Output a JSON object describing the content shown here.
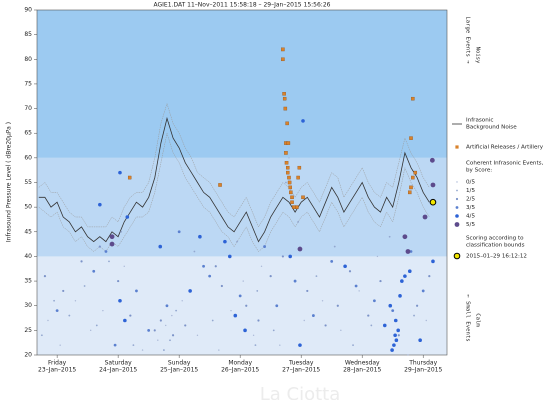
{
  "chart_data": {
    "type": "scatter",
    "title": "AGIE1.DAT   11–Nov–2011 15:58:18   –   29–Jan–2015 15:56:26",
    "ylabel": "Infrasound Pressure Level  ( dBre20µPa )",
    "watermark": "La Ciotta",
    "xlim": [
      0.17,
      6.89
    ],
    "ylim": [
      20,
      90
    ],
    "yticks": [
      20,
      25,
      30,
      35,
      40,
      45,
      50,
      55,
      60,
      65,
      70,
      75,
      80,
      85,
      90
    ],
    "xticks": [
      {
        "value": 0.5,
        "label": "Friday",
        "date": "23–Jan–2015"
      },
      {
        "value": 1.5,
        "label": "Saturday",
        "date": "24–Jan–2015"
      },
      {
        "value": 2.5,
        "label": "Sunday",
        "date": "25–Jan–2015"
      },
      {
        "value": 3.5,
        "label": "Monday",
        "date": "26–Jan–2015"
      },
      {
        "value": 4.5,
        "label": "Tuesday",
        "date": "27–Jan–2015"
      },
      {
        "value": 5.5,
        "label": "Wednesday",
        "date": "28–Jan–2015"
      },
      {
        "value": 6.5,
        "label": "Thursday",
        "date": "29–Jan–2015"
      }
    ],
    "bands": [
      {
        "from": 20,
        "to": 40,
        "color": "#dfeaf8"
      },
      {
        "from": 40,
        "to": 60,
        "color": "#bcd8f4"
      },
      {
        "from": 60,
        "to": 90,
        "color": "#9ccaf1"
      }
    ],
    "zones": {
      "top": [
        "Large Events →",
        "Noisy"
      ],
      "bottom": [
        "← Small Events",
        "Calm"
      ]
    },
    "noise": {
      "name": [
        "Infrasonic",
        "Background Noise"
      ],
      "color": "#333333",
      "envelope_color": "#9a9a9a",
      "x": [
        0.2,
        0.3,
        0.4,
        0.5,
        0.6,
        0.7,
        0.8,
        0.9,
        1.0,
        1.1,
        1.2,
        1.3,
        1.4,
        1.5,
        1.6,
        1.7,
        1.8,
        1.9,
        2.0,
        2.1,
        2.2,
        2.3,
        2.4,
        2.5,
        2.6,
        2.7,
        2.8,
        2.9,
        3.0,
        3.1,
        3.2,
        3.3,
        3.4,
        3.5,
        3.6,
        3.7,
        3.8,
        3.9,
        4.0,
        4.1,
        4.2,
        4.3,
        4.4,
        4.5,
        4.6,
        4.7,
        4.8,
        4.9,
        5.0,
        5.1,
        5.2,
        5.3,
        5.4,
        5.5,
        5.6,
        5.7,
        5.8,
        5.9,
        6.0,
        6.1,
        6.2,
        6.3,
        6.4,
        6.5,
        6.6
      ],
      "values": [
        52,
        52,
        50,
        51,
        48,
        47,
        45,
        46,
        44,
        43,
        44,
        43,
        45,
        44,
        47,
        49,
        51,
        50,
        52,
        56,
        63,
        68,
        64,
        62,
        59,
        57,
        55,
        53,
        52,
        50,
        48,
        46,
        45,
        47,
        49,
        46,
        43,
        45,
        48,
        50,
        52,
        51,
        49,
        51,
        52,
        50,
        48,
        51,
        54,
        52,
        49,
        51,
        53,
        55,
        52,
        50,
        49,
        52,
        50,
        55,
        61,
        58,
        56,
        53,
        51
      ],
      "upper": [
        54,
        55,
        53,
        53,
        51,
        49,
        48,
        48,
        46,
        46,
        46,
        46,
        48,
        47,
        50,
        52,
        53,
        53,
        55,
        60,
        67,
        71,
        67,
        65,
        62,
        60,
        57,
        56,
        55,
        53,
        51,
        49,
        48,
        50,
        52,
        49,
        46,
        48,
        51,
        53,
        55,
        54,
        52,
        54,
        55,
        53,
        51,
        54,
        57,
        56,
        52,
        54,
        56,
        58,
        55,
        53,
        52,
        55,
        54,
        59,
        64,
        61,
        59,
        56,
        54
      ],
      "lower": [
        50,
        49,
        48,
        49,
        46,
        45,
        43,
        44,
        42,
        41,
        42,
        41,
        43,
        42,
        44,
        46,
        48,
        48,
        49,
        53,
        59,
        65,
        61,
        59,
        56,
        54,
        52,
        50,
        49,
        47,
        45,
        44,
        42,
        44,
        46,
        43,
        41,
        42,
        45,
        47,
        49,
        48,
        46,
        48,
        49,
        47,
        45,
        48,
        51,
        49,
        46,
        48,
        50,
        52,
        49,
        47,
        46,
        49,
        47,
        52,
        58,
        55,
        53,
        50,
        48
      ]
    },
    "artillery": {
      "name": "Artificial Releases / Artillery",
      "color": "#d9822b",
      "x": [
        1.69,
        3.17,
        4.2,
        4.2,
        4.22,
        4.23,
        4.24,
        4.25,
        4.25,
        4.26,
        4.27,
        4.28,
        4.28,
        4.29,
        4.3,
        4.31,
        4.32,
        4.33,
        4.35,
        4.35,
        4.38,
        4.43,
        4.45,
        4.47,
        4.53,
        6.3,
        6.33,
        6.28,
        6.3,
        6.33,
        6.37
      ],
      "values": [
        56,
        54.5,
        82,
        80,
        73,
        72,
        70,
        63,
        61,
        59,
        67,
        58,
        57,
        63,
        56,
        55,
        54,
        53,
        52,
        51,
        50,
        50,
        56,
        58,
        52,
        64,
        72,
        53,
        54,
        56,
        57
      ]
    },
    "events_title": [
      "Coherent Infrasonic Events,",
      "by Score:"
    ],
    "series": [
      {
        "name": "0/5",
        "color": "#a9b7d6",
        "x": [
          0.35,
          0.55,
          0.8,
          1.05,
          1.25,
          1.6,
          1.9,
          2.15,
          2.28,
          2.38,
          2.55,
          2.8,
          3.15,
          3.35,
          3.55,
          3.72,
          3.85,
          4.15,
          4.3,
          4.55,
          4.85,
          5.15,
          5.45,
          5.75,
          6.25,
          6.55
        ],
        "values": [
          27,
          22,
          31,
          25,
          29,
          38,
          21,
          23,
          26,
          28,
          31,
          24,
          21,
          29,
          35,
          24,
          38,
          22,
          60,
          27,
          31,
          25,
          33,
          40,
          20,
          27
        ]
      },
      {
        "name": "1/5",
        "color": "#93a7cf",
        "x": [
          0.25,
          0.45,
          0.7,
          0.95,
          1.15,
          1.35,
          1.55,
          1.75,
          2.25,
          2.35,
          2.45,
          2.75,
          3.05,
          3.45,
          3.75,
          3.78,
          4.05,
          4.25,
          4.45,
          4.75,
          5.05,
          5.35,
          5.65,
          5.95,
          6.35
        ],
        "values": [
          24,
          31,
          28,
          34,
          26,
          39,
          45,
          22,
          21,
          23,
          29,
          41,
          27,
          43,
          22,
          33,
          25,
          55,
          47,
          36,
          42,
          22,
          26,
          44,
          28
        ]
      },
      {
        "name": "2/5",
        "color": "#7c93c8",
        "x": [
          0.3,
          0.6,
          0.9,
          1.2,
          1.5,
          1.7,
          2.1,
          2.2,
          2.4,
          2.6,
          3.1,
          3.2,
          3.6,
          3.8,
          4.0,
          4.2,
          4.6,
          4.9,
          5.1,
          5.3,
          5.6,
          5.8,
          6.1,
          6.4,
          6.6
        ],
        "values": [
          36,
          33,
          39,
          42,
          35,
          28,
          25,
          27,
          24,
          26,
          38,
          34,
          30,
          27,
          36,
          40,
          33,
          26,
          30,
          37,
          28,
          35,
          24,
          30,
          36
        ]
      },
      {
        "name": "3/5",
        "color": "#5b80cf",
        "x": [
          0.5,
          1.1,
          1.3,
          1.8,
          2.0,
          2.3,
          2.5,
          3.0,
          3.5,
          3.9,
          4.1,
          4.4,
          4.7,
          5.0,
          5.4,
          5.7,
          6.0,
          6.3,
          6.5,
          1.45,
          2.9
        ],
        "values": [
          29,
          37,
          41,
          33,
          25,
          30,
          45,
          36,
          32,
          42,
          30,
          35,
          28,
          39,
          34,
          31,
          29,
          41,
          33,
          22,
          38
        ]
      },
      {
        "name": "4/5",
        "color": "#2d63d6",
        "x": [
          1.2,
          1.53,
          1.65,
          1.53,
          1.61,
          2.19,
          2.68,
          2.84,
          3.25,
          3.33,
          3.58,
          3.42,
          4.53,
          4.32,
          4.48,
          5.22,
          5.87,
          5.99,
          6.02,
          6.06,
          6.04,
          6.09,
          6.05,
          5.96,
          6.12,
          6.15,
          6.2,
          6.28,
          6.66,
          6.45
        ],
        "values": [
          50.5,
          57,
          48,
          31,
          27,
          42,
          33,
          44,
          43,
          40,
          25,
          28,
          67.5,
          40,
          22,
          38,
          26,
          21,
          22,
          23,
          24,
          25,
          27,
          30,
          32,
          35,
          36,
          37,
          39,
          23
        ]
      },
      {
        "name": "5/5",
        "color": "#5d4b8c",
        "x": [
          1.4,
          1.4,
          4.48,
          6.65,
          6.66,
          6.53,
          6.2,
          6.25
        ],
        "values": [
          44,
          42.5,
          41.5,
          59.5,
          54.5,
          48,
          44,
          41
        ]
      }
    ],
    "scoring_note": [
      "Scoring according to",
      "classification bounds"
    ],
    "highlight": {
      "x": 6.66,
      "y": 51,
      "label": "2015–01–29 16:12:12",
      "color": "#f2e600"
    }
  }
}
